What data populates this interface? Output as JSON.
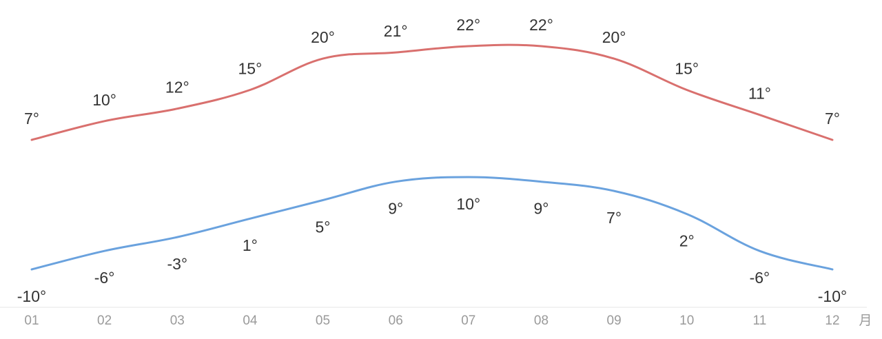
{
  "chart_data": {
    "type": "line",
    "categories": [
      "01",
      "02",
      "03",
      "04",
      "05",
      "06",
      "07",
      "08",
      "09",
      "10",
      "11",
      "12"
    ],
    "x_unit": "月",
    "series": [
      {
        "key": "high",
        "color": "#d9706e",
        "values": [
          7,
          10,
          12,
          15,
          20,
          21,
          22,
          22,
          20,
          15,
          11,
          7
        ]
      },
      {
        "key": "low",
        "color": "#6aa2de",
        "values": [
          -10,
          -6,
          -3,
          1,
          5,
          9,
          10,
          9,
          7,
          2,
          -6,
          -10
        ]
      }
    ],
    "value_suffix": "°",
    "grid": false
  }
}
